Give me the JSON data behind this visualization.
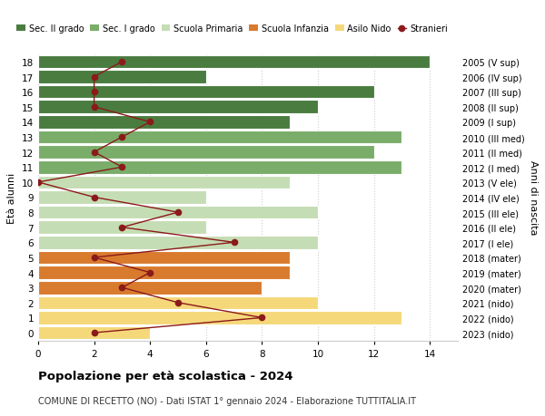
{
  "ages": [
    18,
    17,
    16,
    15,
    14,
    13,
    12,
    11,
    10,
    9,
    8,
    7,
    6,
    5,
    4,
    3,
    2,
    1,
    0
  ],
  "right_labels": [
    "2005 (V sup)",
    "2006 (IV sup)",
    "2007 (III sup)",
    "2008 (II sup)",
    "2009 (I sup)",
    "2010 (III med)",
    "2011 (II med)",
    "2012 (I med)",
    "2013 (V ele)",
    "2014 (IV ele)",
    "2015 (III ele)",
    "2016 (II ele)",
    "2017 (I ele)",
    "2018 (mater)",
    "2019 (mater)",
    "2020 (mater)",
    "2021 (nido)",
    "2022 (nido)",
    "2023 (nido)"
  ],
  "bar_values": [
    14,
    6,
    12,
    10,
    9,
    13,
    12,
    13,
    9,
    6,
    10,
    6,
    10,
    9,
    9,
    8,
    10,
    13,
    4
  ],
  "stranieri": [
    3,
    2,
    2,
    2,
    4,
    3,
    2,
    3,
    0,
    2,
    5,
    3,
    7,
    2,
    4,
    3,
    5,
    8,
    2
  ],
  "bar_colors": [
    "#4a7c40",
    "#4a7c40",
    "#4a7c40",
    "#4a7c40",
    "#4a7c40",
    "#7aad6a",
    "#7aad6a",
    "#7aad6a",
    "#c5ddb4",
    "#c5ddb4",
    "#c5ddb4",
    "#c5ddb4",
    "#c5ddb4",
    "#d97b2e",
    "#d97b2e",
    "#d97b2e",
    "#f5d87a",
    "#f5d87a",
    "#f5d87a"
  ],
  "legend_labels": [
    "Sec. II grado",
    "Sec. I grado",
    "Scuola Primaria",
    "Scuola Infanzia",
    "Asilo Nido",
    "Stranieri"
  ],
  "legend_colors": [
    "#4a7c40",
    "#7aad6a",
    "#c5ddb4",
    "#d97b2e",
    "#f5d87a",
    "#8b1a1a"
  ],
  "stranieri_color": "#8b1a1a",
  "ylabel_left": "Età alunni",
  "ylabel_right": "Anni di nascita",
  "title": "Popolazione per età scolastica - 2024",
  "subtitle": "COMUNE DI RECETTO (NO) - Dati ISTAT 1° gennaio 2024 - Elaborazione TUTTITALIA.IT",
  "xlim": [
    0,
    15
  ],
  "xticks": [
    0,
    2,
    4,
    6,
    8,
    10,
    12,
    14
  ],
  "ylim": [
    -0.55,
    18.55
  ],
  "background_color": "#ffffff",
  "grid_color": "#cccccc"
}
